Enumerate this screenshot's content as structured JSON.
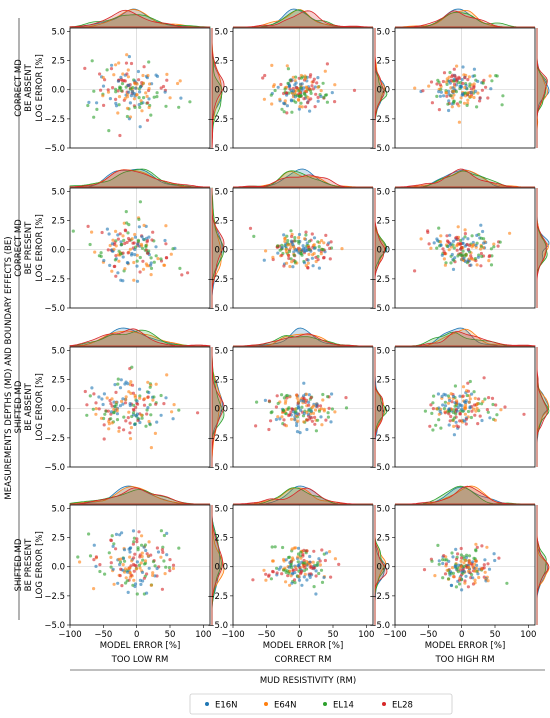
{
  "figure_label": "MEASUREMENTS DEPTHS (MD) AND BOUNDARY EFFECTS (BE)",
  "bottom_label": "MUD RESISTIVITY (RM)",
  "column_labels": [
    "TOO LOW RM",
    "CORRECT RM",
    "TOO HIGH RM"
  ],
  "row_labels": [
    [
      "CORRECT MD",
      "BE ABSENT"
    ],
    [
      "CORRECT MD",
      "BE PRESENT"
    ],
    [
      "SHIFTED MD",
      "BE ABSENT"
    ],
    [
      "SHIFTED MD",
      "BE PRESENT"
    ]
  ],
  "legend": [
    {
      "name": "E16N",
      "color": "#1f77b4"
    },
    {
      "name": "E64N",
      "color": "#ff7f0e"
    },
    {
      "name": "EL14",
      "color": "#2ca02c"
    },
    {
      "name": "EL28",
      "color": "#d62728"
    }
  ],
  "chart_data": {
    "type": "scatter",
    "grid": {
      "rows": 4,
      "cols": 3
    },
    "marginals": "kde (top: model error, right: log error)",
    "xlabel": "MODEL ERROR [%]",
    "ylabel": "LOG ERROR [%]",
    "xlim": [
      -100,
      110
    ],
    "ylim": [
      -5.0,
      5.3
    ],
    "xticks": [
      -100,
      -50,
      0,
      50,
      100
    ],
    "yticks": [
      -5.0,
      -2.5,
      0.0,
      2.5,
      5.0
    ],
    "ytick_labels": [
      "−5.0",
      "−2.5",
      "0.0",
      "2.5",
      "5.0"
    ],
    "xtick_labels": [
      "−100",
      "−50",
      "0",
      "50",
      "100"
    ],
    "series": [
      "E16N",
      "E64N",
      "EL14",
      "EL28"
    ],
    "points_per_series_per_panel": 40,
    "panel_spread": [
      [
        {
          "x_mean": -5,
          "x_sd": 28,
          "y_mean": 0.1,
          "y_sd": 1.3
        },
        {
          "x_mean": 0,
          "x_sd": 22,
          "y_mean": 0.0,
          "y_sd": 0.8
        },
        {
          "x_mean": 0,
          "x_sd": 22,
          "y_mean": 0.0,
          "y_sd": 0.8
        }
      ],
      [
        {
          "x_mean": -5,
          "x_sd": 28,
          "y_mean": 0.1,
          "y_sd": 1.3
        },
        {
          "x_mean": 0,
          "x_sd": 22,
          "y_mean": 0.0,
          "y_sd": 0.8
        },
        {
          "x_mean": 0,
          "x_sd": 22,
          "y_mean": 0.0,
          "y_sd": 0.8
        }
      ],
      [
        {
          "x_mean": -5,
          "x_sd": 28,
          "y_mean": 0.1,
          "y_sd": 1.3
        },
        {
          "x_mean": 0,
          "x_sd": 22,
          "y_mean": 0.0,
          "y_sd": 0.8
        },
        {
          "x_mean": 0,
          "x_sd": 22,
          "y_mean": 0.0,
          "y_sd": 0.8
        }
      ],
      [
        {
          "x_mean": -5,
          "x_sd": 28,
          "y_mean": 0.1,
          "y_sd": 1.3
        },
        {
          "x_mean": 0,
          "x_sd": 22,
          "y_mean": 0.0,
          "y_sd": 0.8
        },
        {
          "x_mean": 0,
          "x_sd": 22,
          "y_mean": 0.0,
          "y_sd": 0.8
        }
      ]
    ]
  }
}
